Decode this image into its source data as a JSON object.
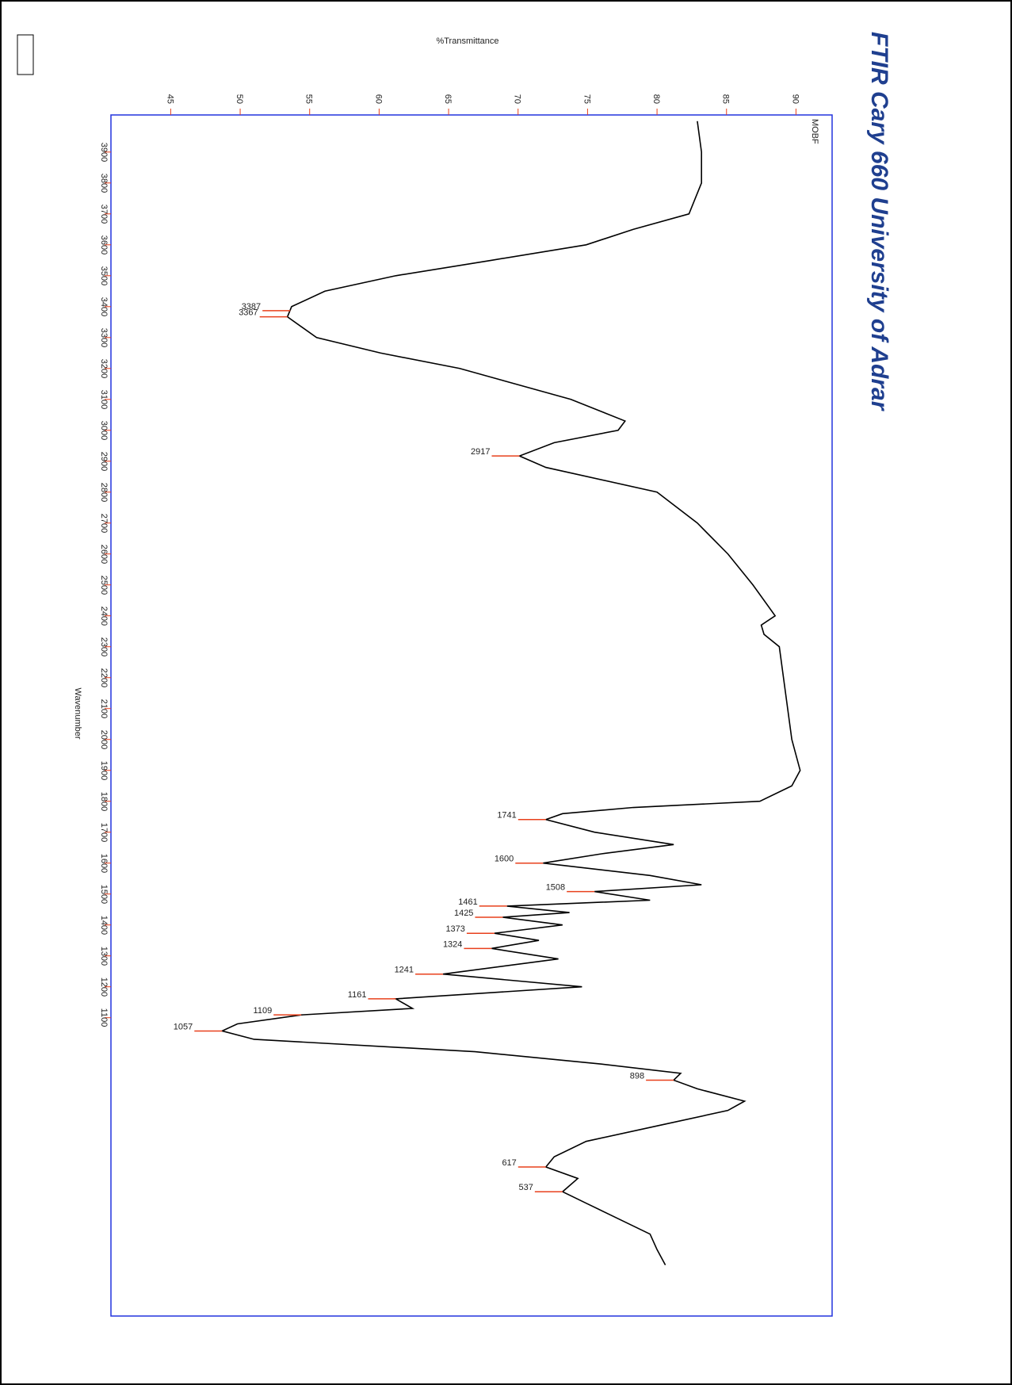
{
  "chart_data": {
    "type": "line",
    "title": "FTIR Cary 660 University of Adrar",
    "sample": "MOBF",
    "x_label": "Wavenumber",
    "y_label": "%Transmittance",
    "xlim": [
      4020,
      135
    ],
    "ylim": [
      40.7,
      92.6
    ],
    "xticks": [
      3900,
      3800,
      3700,
      3600,
      3500,
      3400,
      3300,
      3200,
      3100,
      3000,
      2900,
      2800,
      2700,
      2600,
      2500,
      2400,
      2300,
      2200,
      2100,
      2000,
      1900,
      1800,
      1700,
      1600,
      1500,
      1400,
      1300,
      1200,
      1100
    ],
    "yticks": [
      45,
      50,
      55,
      60,
      65,
      70,
      75,
      80,
      85,
      90
    ],
    "x": [
      4000,
      3900,
      3800,
      3700,
      3650,
      3600,
      3550,
      3500,
      3450,
      3400,
      3367,
      3300,
      3250,
      3200,
      3100,
      3030,
      3000,
      2960,
      2917,
      2880,
      2800,
      2700,
      2600,
      2500,
      2400,
      2370,
      2340,
      2300,
      2200,
      2100,
      2000,
      1900,
      1850,
      1800,
      1780,
      1760,
      1741,
      1700,
      1660,
      1630,
      1600,
      1560,
      1530,
      1508,
      1480,
      1461,
      1440,
      1425,
      1400,
      1373,
      1350,
      1324,
      1290,
      1241,
      1200,
      1161,
      1130,
      1109,
      1080,
      1057,
      1030,
      990,
      950,
      920,
      898,
      870,
      830,
      800,
      750,
      700,
      650,
      617,
      580,
      537,
      500,
      450,
      400,
      350,
      300
    ],
    "series": [
      {
        "color": "#000000",
        "values": [
          82.9,
          83.2,
          83.2,
          82.3,
          78.3,
          74.9,
          68.1,
          61.2,
          56.1,
          53.7,
          53.4,
          55.5,
          60.1,
          65.8,
          73.8,
          77.7,
          77.2,
          72.6,
          70.1,
          72.0,
          80.0,
          82.9,
          85.1,
          86.9,
          88.5,
          87.5,
          87.7,
          88.8,
          89.1,
          89.4,
          89.7,
          90.3,
          89.7,
          87.4,
          78.3,
          73.2,
          72.0,
          75.5,
          81.2,
          76.0,
          71.8,
          79.5,
          83.2,
          75.5,
          79.5,
          69.2,
          73.7,
          68.9,
          73.2,
          68.3,
          71.5,
          68.1,
          72.9,
          64.6,
          74.6,
          61.2,
          62.4,
          54.4,
          49.8,
          48.7,
          51.0,
          66.9,
          76.0,
          81.7,
          81.2,
          82.9,
          86.3,
          85.1,
          80.0,
          74.9,
          72.6,
          72.0,
          74.3,
          73.2,
          74.9,
          77.2,
          79.5,
          80.0,
          80.6
        ]
      }
    ],
    "peak_color": "#e8401c",
    "peaks": [
      {
        "x": 3387,
        "y": 53.6
      },
      {
        "x": 3367,
        "y": 53.4
      },
      {
        "x": 2917,
        "y": 70.1
      },
      {
        "x": 1741,
        "y": 72.0
      },
      {
        "x": 1600,
        "y": 71.8
      },
      {
        "x": 1508,
        "y": 75.5
      },
      {
        "x": 1461,
        "y": 69.2
      },
      {
        "x": 1425,
        "y": 68.9
      },
      {
        "x": 1373,
        "y": 68.3
      },
      {
        "x": 1324,
        "y": 68.1
      },
      {
        "x": 1241,
        "y": 64.6
      },
      {
        "x": 1161,
        "y": 61.2
      },
      {
        "x": 1109,
        "y": 54.4
      },
      {
        "x": 1057,
        "y": 48.7
      },
      {
        "x": 898,
        "y": 81.2
      },
      {
        "x": 617,
        "y": 72.0
      },
      {
        "x": 537,
        "y": 73.2
      }
    ]
  }
}
